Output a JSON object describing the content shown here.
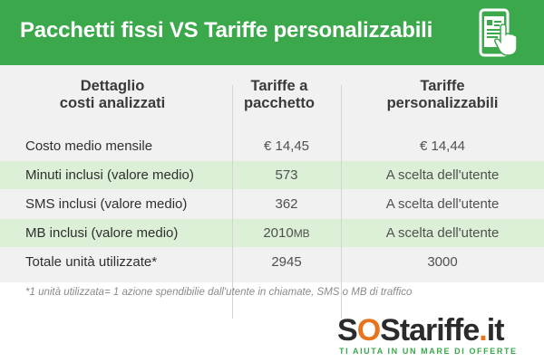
{
  "header": {
    "title": "Pacchetti fissi VS Tariffe personalizzabili",
    "icon": "smartphone-touch-icon"
  },
  "table": {
    "headers": {
      "col1": [
        "Dettaglio",
        "costi analizzati"
      ],
      "col2": [
        "Tariffe a",
        "pacchetto"
      ],
      "col3": [
        "Tariffe",
        "personalizzabili"
      ]
    },
    "rows": [
      {
        "label": "Costo medio mensile",
        "pacchetto": "€ 14,45",
        "personalizzabili": "€ 14,44"
      },
      {
        "label": "Minuti inclusi (valore medio)",
        "pacchetto": "573",
        "personalizzabili": "A scelta dell'utente"
      },
      {
        "label": "SMS inclusi (valore medio)",
        "pacchetto": "362",
        "personalizzabili": "A scelta dell'utente"
      },
      {
        "label": "MB inclusi (valore medio)",
        "pacchetto": "2010",
        "pacchetto_unit": "MB",
        "personalizzabili": "A scelta dell'utente"
      },
      {
        "label": "Totale unità utilizzate*",
        "pacchetto": "2945",
        "personalizzabili": "3000"
      }
    ]
  },
  "footnote": "*1 unità utilizzata= 1 azione spendibilie dall'utente in chiamate, SMS o MB di traffico",
  "logo": {
    "sos_s1": "S",
    "sos_o": "O",
    "sos_s2": "S",
    "tariffe": "tariffe",
    "dot": ".",
    "it": "it",
    "tagline": "TI AIUTA IN UN MARE DI OFFERTE"
  },
  "colors": {
    "brand_green": "#3aa84b",
    "row_green": "#dcefd7",
    "row_grey": "#f1f1f1",
    "logo_orange": "#e8741e"
  }
}
